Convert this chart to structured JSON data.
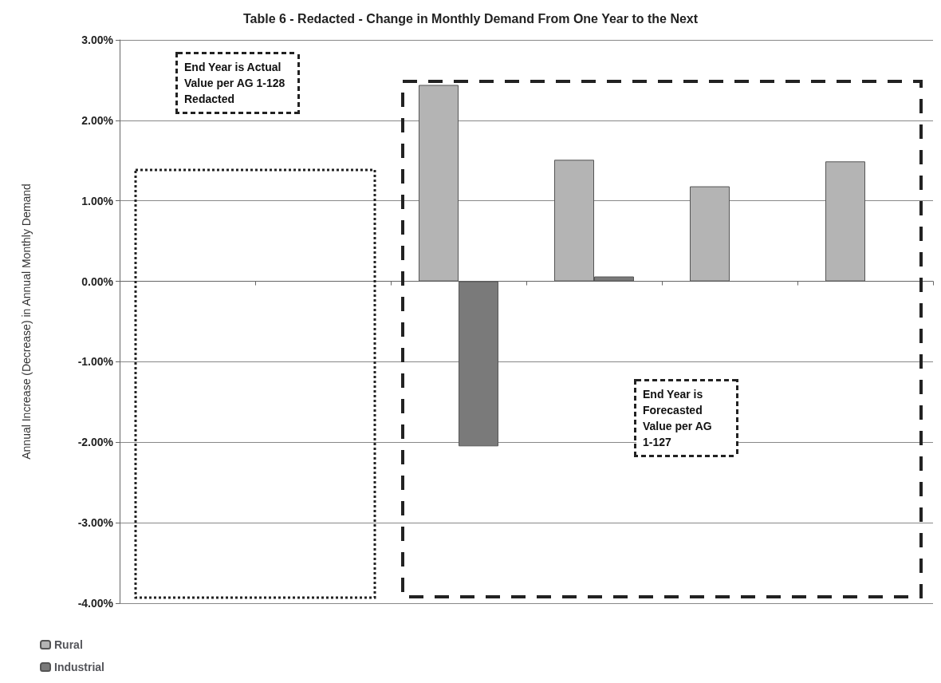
{
  "chart_data": {
    "type": "bar",
    "title": "Table 6 - Redacted - Change in Monthly Demand From One Year to the Next",
    "ylabel": "Annual Increase (Decrease) in Annual Monthly Demand",
    "categories": [
      null,
      null,
      null,
      null,
      null,
      null
    ],
    "series": [
      {
        "name": "Rural",
        "color": "#b4b4b4",
        "values": [
          null,
          null,
          2.44,
          1.51,
          1.18,
          1.49
        ]
      },
      {
        "name": "Industrial",
        "color": "#7a7a7a",
        "values": [
          null,
          null,
          -2.05,
          0.06,
          null,
          null
        ]
      }
    ],
    "ylim": [
      -4,
      3
    ],
    "yticks": [
      {
        "value": -4,
        "label": "-4.00%"
      },
      {
        "value": -3,
        "label": "-3.00%"
      },
      {
        "value": -2,
        "label": "-2.00%"
      },
      {
        "value": -1,
        "label": "-1.00%"
      },
      {
        "value": 0,
        "label": "0.00%"
      },
      {
        "value": 1,
        "label": "1.00%"
      },
      {
        "value": 2,
        "label": "2.00%"
      },
      {
        "value": 3,
        "label": "3.00%"
      }
    ],
    "grid": "y",
    "legend": "bottom left",
    "annotations": [
      "End Year is Actual Value per AG 1-128 Redacted",
      "End Year is Forecasted Value per AG 1-127"
    ]
  }
}
